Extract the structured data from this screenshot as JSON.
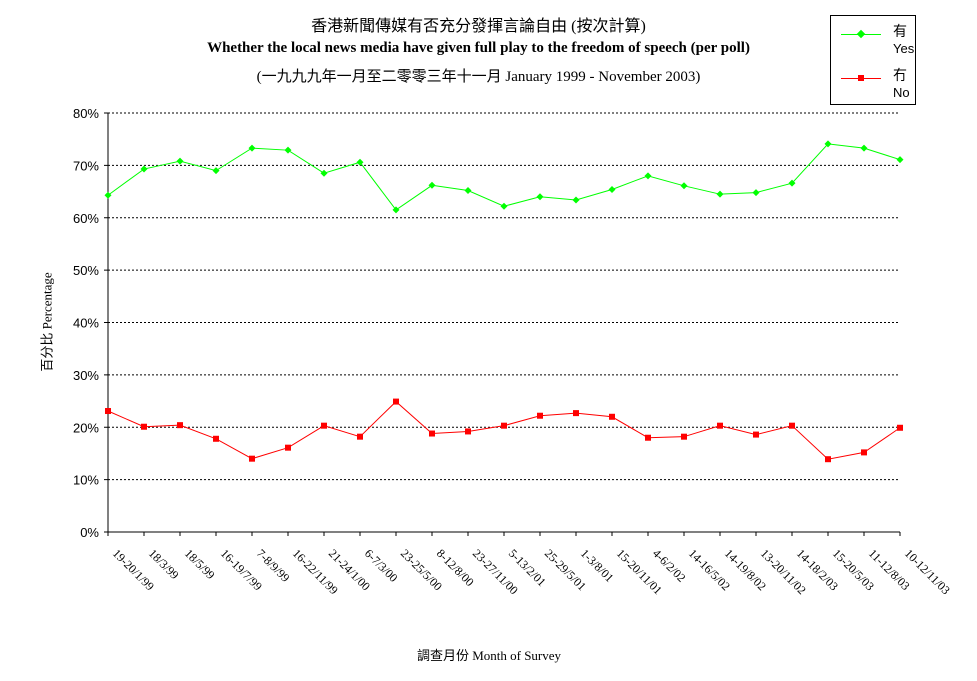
{
  "chart_data": {
    "type": "line",
    "title": "香港新聞傳媒有否充分發揮言論自由 (按次計算)",
    "subtitle": "Whether the local news media have given full play to the freedom of speech (per poll)",
    "subtitle2": "(一九九九年一月至二零零三年十一月 January 1999 - November 2003)",
    "xlabel": "調查月份 Month of Survey",
    "ylabel": "百分比 Percentage",
    "ylim": [
      0,
      80
    ],
    "yticks": [
      "0%",
      "10%",
      "20%",
      "30%",
      "40%",
      "50%",
      "60%",
      "70%",
      "80%"
    ],
    "grid": true,
    "legend_position": "top-right",
    "categories": [
      "19-20/1/99",
      "18/3/99",
      "18/5/99",
      "16-19/7/99",
      "7-8/9/99",
      "16-22/11/99",
      "21-24/1/00",
      "6-7/3/00",
      "23-25/5/00",
      "8-12/8/00",
      "23-27/11/00",
      "5-13/2/01",
      "25-29/5/01",
      "1-3/8/01",
      "15-20/11/01",
      "4-6/2/02",
      "14-16/5/02",
      "14-19/8/02",
      "13-20/11/02",
      "14-18/2/03",
      "15-20/5/03",
      "11-12/8/03",
      "10-12/11/03"
    ],
    "series": [
      {
        "name": "有",
        "name_en": "Yes",
        "color": "#00ff00",
        "marker": "diamond",
        "values": [
          64.3,
          69.3,
          70.8,
          69.0,
          73.3,
          72.9,
          68.5,
          70.6,
          61.5,
          66.2,
          65.2,
          62.2,
          64.0,
          63.4,
          65.4,
          68.0,
          66.1,
          64.5,
          64.8,
          66.6,
          74.1,
          73.3,
          71.1
        ]
      },
      {
        "name": "冇",
        "name_en": "No",
        "color": "#ff0000",
        "marker": "square",
        "values": [
          23.1,
          20.1,
          20.4,
          17.8,
          14.0,
          16.1,
          20.3,
          18.2,
          24.9,
          18.8,
          19.2,
          20.3,
          22.2,
          22.7,
          22.0,
          18.0,
          18.2,
          20.3,
          18.6,
          20.3,
          13.9,
          15.2,
          19.9
        ]
      }
    ]
  }
}
